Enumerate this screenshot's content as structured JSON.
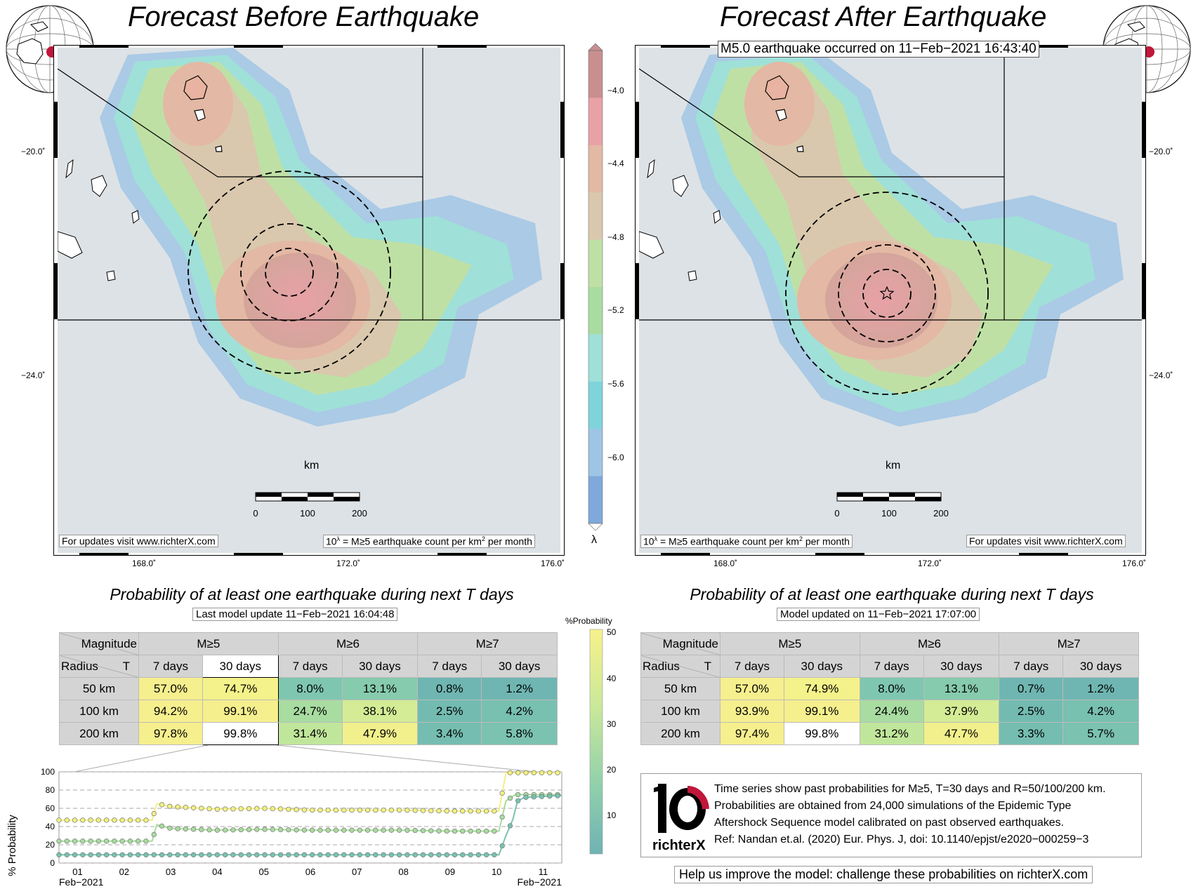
{
  "left_title": "Forecast Before Earthquake",
  "right_title": "Forecast After Earthquake",
  "event_label": "M5.0 earthquake occurred on 11−Feb−2021 16:43:40",
  "map": {
    "lat_ticks": [
      "−20.0˚",
      "−24.0˚"
    ],
    "lon_ticks": [
      "168.0˚",
      "172.0˚",
      "176.0˚"
    ],
    "scale_title": "km",
    "scale_ticks": [
      "0",
      "100",
      "200"
    ],
    "updates_text": "For updates visit www.richterX.com",
    "legend_prefix": "10",
    "legend_sup": "λ",
    "legend_mid": " = M≥5 earthquake count per km",
    "legend_sup2": "2",
    "legend_end": " per month"
  },
  "colorbar": {
    "symbol": "λ",
    "ticks": [
      "−4.0",
      "−4.4",
      "−4.8",
      "−5.2",
      "−5.6",
      "−6.0"
    ],
    "colors": [
      "#c98f8f",
      "#e8a1a7",
      "#e3b8a4",
      "#d9c8ad",
      "#bfe0a5",
      "#a9dca0",
      "#9fe0d8",
      "#7fd3db",
      "#9ec4e6",
      "#7fa9db"
    ]
  },
  "prob_left": {
    "title": "Probability of at least one earthquake during next T days",
    "subtitle": "Last model update 11−Feb−2021 16:04:48",
    "header_mag": "Magnitude",
    "header_radius": "Radius",
    "header_t": "T",
    "mags": [
      "M≥5",
      "M≥6",
      "M≥7"
    ],
    "periods": [
      "7 days",
      "30 days",
      "7 days",
      "30 days",
      "7 days",
      "30 days"
    ],
    "rows": [
      {
        "radius": "50 km",
        "values": [
          "57.0%",
          "74.7%",
          "8.0%",
          "13.1%",
          "0.8%",
          "1.2%"
        ],
        "colors": [
          "#f6ef8e",
          "#f4f28a",
          "#7fc6b0",
          "#86cbae",
          "#6fb6b2",
          "#6fb6b2"
        ]
      },
      {
        "radius": "100 km",
        "values": [
          "94.2%",
          "99.1%",
          "24.7%",
          "38.1%",
          "2.5%",
          "4.2%"
        ],
        "colors": [
          "#f6ef8e",
          "#f6ef8e",
          "#a8dca1",
          "#d4ec95",
          "#73bbb1",
          "#78c0b0"
        ]
      },
      {
        "radius": "200 km",
        "values": [
          "97.8%",
          "99.8%",
          "31.4%",
          "47.9%",
          "3.4%",
          "5.8%"
        ],
        "colors": [
          "#f6ef8e",
          "#ffffff",
          "#c0e69b",
          "#f1f08c",
          "#75bdb1",
          "#7bc2b0"
        ]
      }
    ]
  },
  "prob_right": {
    "title": "Probability of at least one earthquake during next T days",
    "subtitle": "Model updated on 11−Feb−2021 17:07:00",
    "header_mag": "Magnitude",
    "header_radius": "Radius",
    "header_t": "T",
    "mags": [
      "M≥5",
      "M≥6",
      "M≥7"
    ],
    "periods": [
      "7 days",
      "30 days",
      "7 days",
      "30 days",
      "7 days",
      "30 days"
    ],
    "rows": [
      {
        "radius": "50 km",
        "values": [
          "57.0%",
          "74.9%",
          "8.0%",
          "13.1%",
          "0.7%",
          "1.2%"
        ],
        "colors": [
          "#f6ef8e",
          "#f4f28a",
          "#7fc6b0",
          "#86cbae",
          "#6fb6b2",
          "#6fb6b2"
        ]
      },
      {
        "radius": "100 km",
        "values": [
          "93.9%",
          "99.1%",
          "24.4%",
          "37.9%",
          "2.5%",
          "4.2%"
        ],
        "colors": [
          "#f6ef8e",
          "#f6ef8e",
          "#a8dca1",
          "#d4ec95",
          "#73bbb1",
          "#78c0b0"
        ]
      },
      {
        "radius": "200 km",
        "values": [
          "97.4%",
          "99.8%",
          "31.2%",
          "47.7%",
          "3.3%",
          "5.7%"
        ],
        "colors": [
          "#f6ef8e",
          "#ffffff",
          "#c0e69b",
          "#f1f08c",
          "#75bdb1",
          "#7bc2b0"
        ]
      }
    ]
  },
  "prob_colorbar": {
    "title": "%Probability",
    "ticks": [
      "50",
      "40",
      "30",
      "20",
      "10"
    ]
  },
  "timeseries": {
    "ylabel": "% Probability",
    "yticks": [
      "100",
      "80",
      "60",
      "40",
      "20",
      "0"
    ],
    "xticks": [
      "01",
      "02",
      "03",
      "04",
      "05",
      "06",
      "07",
      "08",
      "09",
      "10",
      "11"
    ],
    "x_start_label": "Feb−2021",
    "x_end_label": "Feb−2021"
  },
  "chart_data": {
    "type": "line",
    "title": "",
    "xlabel": "",
    "ylabel": "% Probability",
    "ylim": [
      0,
      100
    ],
    "x_range_days": [
      0.6,
      11.4
    ],
    "series": [
      {
        "values": [
          [
            0.6,
            47
          ],
          [
            2.6,
            47
          ],
          [
            2.7,
            65
          ],
          [
            3.0,
            62
          ],
          [
            4.0,
            59
          ],
          [
            5.0,
            60
          ],
          [
            6.0,
            58
          ],
          [
            7.0,
            58
          ],
          [
            8.0,
            58
          ],
          [
            9.0,
            57
          ],
          [
            10.05,
            57
          ],
          [
            10.2,
            99
          ],
          [
            11.4,
            99
          ]
        ],
        "color": "#f2f083"
      },
      {
        "values": [
          [
            0.6,
            24
          ],
          [
            2.6,
            24
          ],
          [
            2.7,
            42
          ],
          [
            3.0,
            38
          ],
          [
            4.0,
            36
          ],
          [
            5.0,
            37
          ],
          [
            6.0,
            36
          ],
          [
            7.0,
            36
          ],
          [
            8.0,
            36
          ],
          [
            9.0,
            35
          ],
          [
            10.05,
            35
          ],
          [
            10.2,
            68
          ],
          [
            10.4,
            75
          ],
          [
            11.4,
            75
          ]
        ],
        "color": "#a9db9f"
      },
      {
        "values": [
          [
            0.6,
            9
          ],
          [
            10.05,
            9
          ],
          [
            10.2,
            30
          ],
          [
            10.35,
            48
          ],
          [
            10.45,
            68
          ],
          [
            10.6,
            72
          ],
          [
            11.4,
            74
          ]
        ],
        "color": "#78c2b0"
      }
    ]
  },
  "info": {
    "logo_text": "richterX",
    "lines": [
      "Time series show past probabilities for M≥5, T=30 days and R=50/100/200 km.",
      "Probabilities are obtained from 24,000 simulations of the Epidemic Type",
      "Aftershock Sequence model calibrated on past observed earthquakes.",
      "Ref: Nandan et.al. (2020) Eur. Phys. J, doi: 10.1140/epjst/e2020−000259−3"
    ],
    "help_text": "Help us improve the model: challenge these probabilities on richterX.com"
  }
}
